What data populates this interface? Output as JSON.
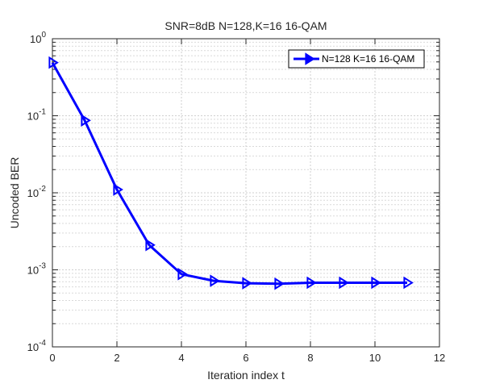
{
  "chart_data": {
    "type": "line",
    "title": "SNR=8dB N=128,K=16 16-QAM",
    "xlabel": "Iteration index t",
    "ylabel": "Uncoded BER",
    "xlim": [
      0,
      12
    ],
    "ylim": [
      0.0001,
      1
    ],
    "yscale": "log",
    "x_ticks": [
      "0",
      "2",
      "4",
      "6",
      "8",
      "10",
      "12"
    ],
    "y_ticks": [
      {
        "base": "10",
        "exp": "0"
      },
      {
        "base": "10",
        "exp": "-1"
      },
      {
        "base": "10",
        "exp": "-2"
      },
      {
        "base": "10",
        "exp": "-3"
      },
      {
        "base": "10",
        "exp": "-4"
      }
    ],
    "grid": true,
    "legend_position": "top-right",
    "series": [
      {
        "name": "N=128 K=16 16-QAM",
        "color": "#0000ff",
        "marker": "triangle-right",
        "x": [
          0,
          1,
          2,
          3,
          4,
          5,
          6,
          7,
          8,
          9,
          10,
          11
        ],
        "y": [
          0.49,
          0.087,
          0.011,
          0.0021,
          0.00088,
          0.00072,
          0.00067,
          0.00066,
          0.00068,
          0.00068,
          0.00068,
          0.00068
        ]
      }
    ]
  }
}
